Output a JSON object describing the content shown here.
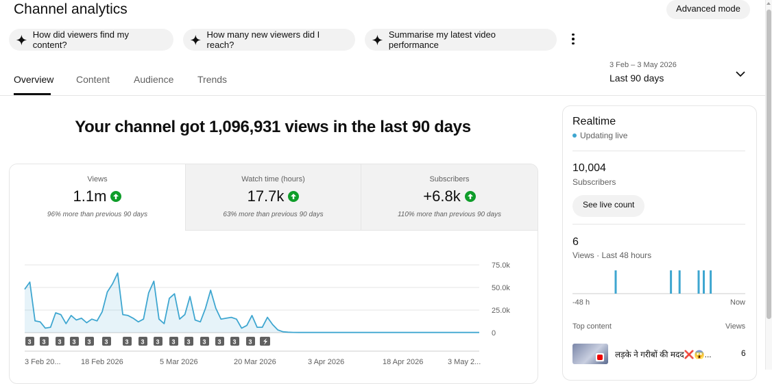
{
  "header": {
    "title": "Channel analytics",
    "advanced_mode": "Advanced mode",
    "prompts": [
      "How did viewers find my content?",
      "How many new viewers did I reach?",
      "Summarise my latest video performance"
    ]
  },
  "tabs": [
    "Overview",
    "Content",
    "Audience",
    "Trends"
  ],
  "date_picker": {
    "range": "3 Feb – 3 May 2026",
    "label": "Last 90 days"
  },
  "headline": "Your channel got 1,096,931 views in the last 90 days",
  "metrics": [
    {
      "label": "Views",
      "value": "1.1m",
      "sub": "96% more than previous 90 days"
    },
    {
      "label": "Watch time (hours)",
      "value": "17.7k",
      "sub": "63% more than previous 90 days"
    },
    {
      "label": "Subscribers",
      "value": "+6.8k",
      "sub": "110% more than previous 90 days"
    }
  ],
  "chart_data": {
    "type": "area",
    "y_ticks": [
      "75.0k",
      "50.0k",
      "25.0k",
      "0"
    ],
    "ylim": [
      0,
      75000
    ],
    "x_ticks": [
      "3 Feb 20...",
      "18 Feb 2026",
      "5 Mar 2026",
      "20 Mar 2026",
      "3 Apr 2026",
      "18 Apr 2026",
      "3 May 2..."
    ],
    "color": "#3ea6d0",
    "series": [
      {
        "values": [
          48000,
          56000,
          13000,
          12000,
          5000,
          6000,
          22000,
          20000,
          10000,
          19000,
          14000,
          16000,
          11000,
          15000,
          13000,
          23000,
          45000,
          54000,
          66000,
          20000,
          19000,
          16000,
          12000,
          15000,
          44000,
          57000,
          15000,
          10000,
          38000,
          43000,
          15000,
          20000,
          40000,
          14000,
          12000,
          27000,
          47000,
          27000,
          15000,
          16000,
          17000,
          15000,
          5000,
          8000,
          19000,
          6000,
          6000,
          17000,
          9000,
          3000,
          1000,
          500,
          300,
          200,
          200,
          200,
          200,
          200,
          200,
          200,
          200,
          200,
          200,
          200,
          200,
          200,
          200,
          200,
          200,
          200,
          200,
          200,
          200,
          200,
          200,
          200,
          200,
          200,
          200,
          200,
          200,
          200,
          200,
          200,
          200,
          200,
          200,
          200,
          200
        ]
      }
    ],
    "markers": [
      "3",
      "3",
      "3",
      "3",
      "3",
      "3",
      "3",
      "3",
      "3",
      "3",
      "3",
      "3",
      "3",
      "3",
      "3",
      "3",
      "short"
    ]
  },
  "realtime": {
    "title": "Realtime",
    "status": "Updating live",
    "subscribers_value": "10,004",
    "subscribers_label": "Subscribers",
    "live_button": "See live count",
    "views_value": "6",
    "views_label": "Views · Last 48 hours",
    "axis_start": "-48 h",
    "axis_end": "Now",
    "bars": [
      0.25,
      0.57,
      0.62,
      0.73,
      0.76,
      0.8
    ],
    "top_content_label": "Top content",
    "views_col_label": "Views",
    "top_item_title": "लड़के ने गरीबों की मदद❌😱...",
    "top_item_views": "6"
  }
}
